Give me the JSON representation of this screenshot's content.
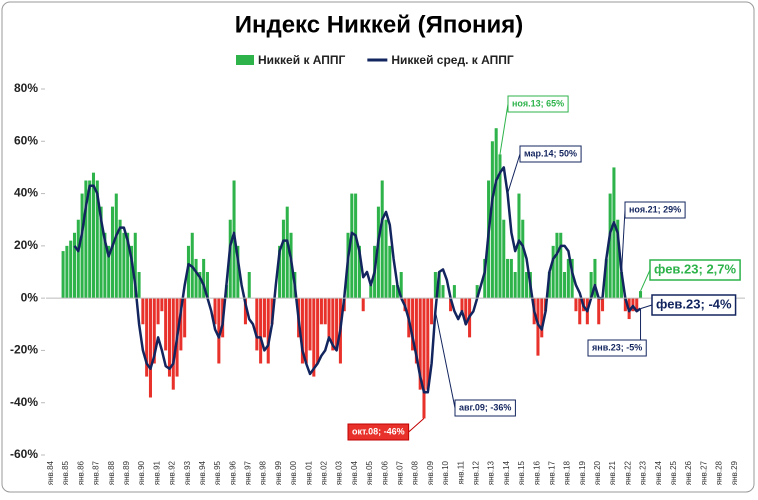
{
  "chart_data": {
    "type": "bar-line",
    "title": "Индекс Никкей (Япония)",
    "legend": "top",
    "grid": false,
    "negative_color": "#e8312a",
    "ylim": [
      -60,
      80
    ],
    "yticks": [
      {
        "value": -60,
        "label": "-60%"
      },
      {
        "value": -40,
        "label": "-40%"
      },
      {
        "value": -20,
        "label": "-20%"
      },
      {
        "value": 0,
        "label": "0%"
      },
      {
        "value": 20,
        "label": "20%"
      },
      {
        "value": 40,
        "label": "40%"
      },
      {
        "value": 60,
        "label": "60%"
      },
      {
        "value": 80,
        "label": "80%"
      }
    ],
    "categories": [
      "янв.84",
      null,
      null,
      null,
      "янв.85",
      null,
      null,
      null,
      "янв.86",
      null,
      null,
      null,
      "янв.87",
      null,
      null,
      null,
      "янв.88",
      null,
      null,
      null,
      "янв.89",
      null,
      null,
      null,
      "янв.90",
      null,
      null,
      null,
      "янв.91",
      null,
      null,
      null,
      "янв.92",
      null,
      null,
      null,
      "янв.93",
      null,
      null,
      null,
      "янв.94",
      null,
      null,
      null,
      "янв.95",
      null,
      null,
      null,
      "янв.96",
      null,
      null,
      null,
      "янв.97",
      null,
      null,
      null,
      "янв.98",
      null,
      null,
      null,
      "янв.99",
      null,
      null,
      null,
      "янв.00",
      null,
      null,
      null,
      "янв.01",
      null,
      null,
      null,
      "янв.02",
      null,
      null,
      null,
      "янв.03",
      null,
      null,
      null,
      "янв.04",
      null,
      null,
      null,
      "янв.05",
      null,
      null,
      null,
      "янв.06",
      null,
      null,
      null,
      "янв.07",
      null,
      null,
      null,
      "янв.08",
      null,
      null,
      null,
      "янв.09",
      null,
      null,
      null,
      "янв.10",
      null,
      null,
      null,
      "янв.11",
      null,
      null,
      null,
      "янв.12",
      null,
      null,
      null,
      "янв.13",
      null,
      null,
      null,
      "янв.14",
      null,
      null,
      null,
      "янв.15",
      null,
      null,
      null,
      "янв.16",
      null,
      null,
      null,
      "янв.17",
      null,
      null,
      null,
      "янв.18",
      null,
      null,
      null,
      "янв.19",
      null,
      null,
      null,
      "янв.20",
      null,
      null,
      null,
      "янв.21",
      null,
      null,
      null,
      "янв.22",
      null,
      null,
      null,
      "янв.23",
      null,
      null,
      null,
      "янв.24",
      null,
      null,
      null,
      "янв.25",
      null,
      null,
      null,
      "янв.26",
      null,
      null,
      null,
      "янв.27",
      null,
      null,
      null,
      "янв.28",
      null,
      null,
      null,
      "янв.29",
      null,
      null,
      null
    ],
    "series": [
      {
        "name": "Никкей к АППГ",
        "type": "bar",
        "color": "#2db34a",
        "values": [
          null,
          null,
          null,
          null,
          18,
          20,
          22,
          25,
          30,
          40,
          45,
          45,
          48,
          45,
          35,
          25,
          20,
          35,
          40,
          30,
          25,
          25,
          20,
          25,
          10,
          -10,
          -30,
          -38,
          -25,
          -10,
          -5,
          -20,
          -30,
          -35,
          -30,
          -20,
          -15,
          20,
          25,
          15,
          10,
          15,
          10,
          0,
          -10,
          -25,
          -15,
          5,
          30,
          45,
          20,
          0,
          -10,
          10,
          0,
          -20,
          -25,
          -15,
          -25,
          -10,
          0,
          20,
          30,
          35,
          25,
          10,
          -15,
          -25,
          -25,
          -20,
          -30,
          -25,
          -10,
          -10,
          -15,
          -20,
          -20,
          -25,
          -5,
          25,
          40,
          40,
          20,
          -5,
          0,
          5,
          20,
          35,
          45,
          30,
          20,
          5,
          5,
          10,
          -5,
          -15,
          -20,
          -25,
          -35,
          -46,
          -35,
          -10,
          10,
          10,
          5,
          0,
          -5,
          5,
          0,
          -5,
          -10,
          -15,
          0,
          5,
          0,
          15,
          45,
          60,
          65,
          55,
          30,
          15,
          15,
          10,
          40,
          30,
          10,
          10,
          -10,
          -22,
          -15,
          -5,
          10,
          20,
          25,
          25,
          10,
          15,
          15,
          -5,
          -10,
          -5,
          -10,
          10,
          15,
          -10,
          -5,
          15,
          40,
          50,
          30,
          10,
          -5,
          -8,
          -5,
          -5,
          2.7,
          null,
          null,
          null,
          null,
          null,
          null,
          null,
          null,
          null,
          null,
          null,
          null,
          null,
          null,
          null,
          null,
          null,
          null,
          null,
          null,
          null,
          null,
          null,
          null,
          null,
          null,
          null
        ]
      },
      {
        "name": "Никкей сред. к АППГ",
        "type": "line",
        "color": "#13255e",
        "values": [
          null,
          null,
          null,
          null,
          null,
          null,
          null,
          20,
          18,
          25,
          35,
          43,
          43,
          40,
          30,
          22,
          16,
          20,
          24,
          27,
          27,
          22,
          15,
          5,
          -10,
          -20,
          -25,
          -27,
          -22,
          -15,
          -20,
          -26,
          -27,
          -25,
          -15,
          -5,
          5,
          13,
          12,
          10,
          8,
          5,
          0,
          -5,
          -12,
          -15,
          -10,
          5,
          20,
          25,
          15,
          5,
          -2,
          -8,
          -10,
          -15,
          -15,
          -20,
          -18,
          -10,
          5,
          18,
          22,
          22,
          15,
          5,
          -8,
          -20,
          -25,
          -29,
          -27,
          -25,
          -22,
          -20,
          -15,
          -18,
          -20,
          -12,
          0,
          15,
          25,
          24,
          18,
          8,
          10,
          5,
          10,
          22,
          30,
          33,
          28,
          15,
          5,
          0,
          -3,
          -8,
          -15,
          -22,
          -30,
          -36,
          -36,
          -25,
          -5,
          10,
          11,
          7,
          0,
          -5,
          -8,
          -5,
          -10,
          -7,
          -5,
          0,
          5,
          10,
          25,
          38,
          45,
          48,
          50,
          40,
          25,
          18,
          22,
          20,
          15,
          5,
          -5,
          -10,
          -12,
          -5,
          10,
          15,
          17,
          20,
          20,
          18,
          10,
          5,
          2,
          -3,
          -5,
          0,
          5,
          0,
          0,
          15,
          25,
          29,
          25,
          10,
          0,
          -5,
          -3,
          -5,
          -4,
          null,
          null,
          null,
          null,
          null,
          null,
          null,
          null,
          null,
          null,
          null,
          null,
          null,
          null,
          null,
          null,
          null,
          null,
          null,
          null,
          null,
          null,
          null,
          null,
          null,
          null,
          null
        ]
      }
    ],
    "annotations": [
      "ноя.13; 65%",
      "мар.14; 50%",
      "ноя.21; 29%",
      "фев.23; 2,7%",
      "фев.23; -4%",
      "янв.23; -5%",
      "авг.09; -36%",
      "окт.08; -46%"
    ]
  }
}
